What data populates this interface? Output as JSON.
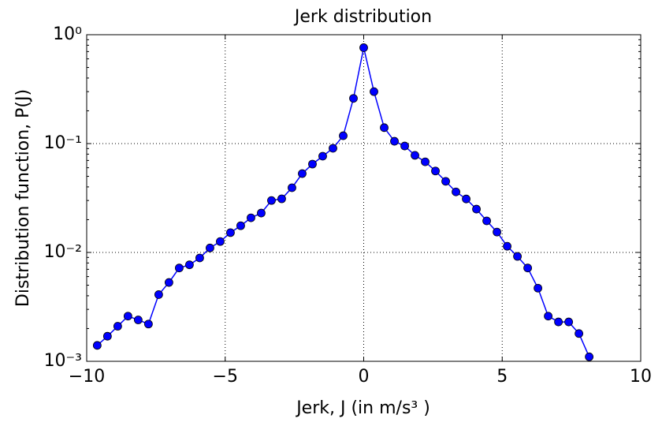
{
  "chart_data": {
    "type": "line",
    "title": "Jerk distribution",
    "x_label": "Jerk, J  (in m/s³ )",
    "y_label": "Distribution function, P(J)",
    "x": [
      -9.62,
      -9.25,
      -8.88,
      -8.51,
      -8.14,
      -7.77,
      -7.4,
      -7.03,
      -6.66,
      -6.29,
      -5.92,
      -5.55,
      -5.18,
      -4.81,
      -4.44,
      -4.07,
      -3.7,
      -3.33,
      -2.96,
      -2.59,
      -2.22,
      -1.85,
      -1.48,
      -1.11,
      -0.74,
      -0.37,
      0,
      0.37,
      0.74,
      1.11,
      1.48,
      1.85,
      2.22,
      2.59,
      2.96,
      3.33,
      3.7,
      4.07,
      4.44,
      4.81,
      5.18,
      5.55,
      5.92,
      6.29,
      6.66,
      7.03,
      7.4,
      7.77,
      8.14
    ],
    "series": [
      {
        "color": "#0000ff",
        "values": [
          0.0014,
          0.0017,
          0.0021,
          0.0026,
          0.0024,
          0.0022,
          0.0041,
          0.0053,
          0.0072,
          0.0077,
          0.0089,
          0.011,
          0.0126,
          0.0152,
          0.0176,
          0.0208,
          0.023,
          0.03,
          0.0311,
          0.0393,
          0.053,
          0.0648,
          0.0766,
          0.0905,
          0.118,
          0.26,
          0.76,
          0.3,
          0.14,
          0.105,
          0.095,
          0.078,
          0.068,
          0.056,
          0.045,
          0.036,
          0.031,
          0.025,
          0.0195,
          0.0154,
          0.0114,
          0.0092,
          0.0072,
          0.0047,
          0.0026,
          0.0023,
          0.0023,
          0.0018,
          0.0011
        ]
      }
    ],
    "xlim": [
      -10,
      10
    ],
    "xticks": [
      {
        "value": -10,
        "label": "−10"
      },
      {
        "value": -5,
        "label": "−5"
      },
      0,
      5,
      10
    ],
    "ylim": [
      0.001,
      1
    ],
    "log_y": true,
    "yticks": [
      {
        "value": 0.001,
        "label": "10⁻³"
      },
      {
        "value": 0.01,
        "label": "10⁻²"
      },
      {
        "value": 0.1,
        "label": "10⁻¹"
      },
      {
        "value": 1,
        "label": "10⁰"
      }
    ],
    "grid": true
  }
}
